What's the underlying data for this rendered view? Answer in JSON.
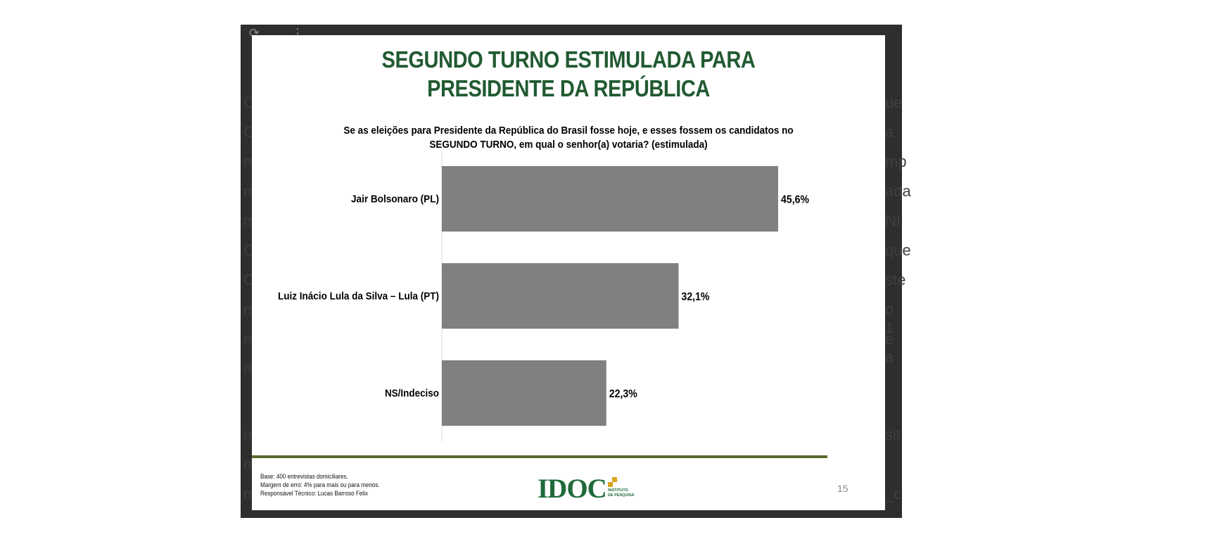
{
  "viewer": {
    "background_letters": [
      "C",
      "C",
      "m",
      "m",
      "m",
      "C",
      "C",
      "m",
      "m",
      "m",
      "m",
      "m",
      "m"
    ],
    "background_right": [
      "ue",
      "a",
      "mp",
      "ada",
      "NI",
      "que",
      "ste",
      "o 1",
      "e a",
      "sit",
      "_c"
    ]
  },
  "slide": {
    "title_lines": [
      "SEGUNDO TURNO ESTIMULADA PARA",
      "PRESIDENTE DA REPÚBLICA"
    ],
    "question_lines": [
      "Se as eleições para Presidente da República do Brasil fosse hoje, e esses fossem os candidatos no",
      "SEGUNDO TURNO, em qual o senhor(a) votaria? (estimulada)"
    ],
    "footer_notes": [
      "Base: 400 entrevistas domiciliares.",
      "Margem de erro: 4% para mais ou para menos.",
      "Responsável Técnico: Lucas Barroso Felix"
    ],
    "logo": {
      "name": "IDOC",
      "subtitle_lines": [
        "INSTITUTO",
        "DE PESQUISA"
      ],
      "accent_color": "#d8a31a"
    },
    "page_number": "15"
  },
  "chart_data": {
    "type": "bar",
    "orientation": "horizontal",
    "categories": [
      "Jair Bolsonaro (PL)",
      "Luiz Inácio Lula da Silva – Lula (PT)",
      "NS/Indeciso"
    ],
    "values": [
      45.6,
      32.1,
      22.3
    ],
    "value_labels": [
      "45,6%",
      "32,1%",
      "22,3%"
    ],
    "xlim": [
      0,
      50
    ],
    "bar_color": "#808080",
    "title": "SEGUNDO TURNO ESTIMULADA PARA PRESIDENTE DA REPÚBLICA",
    "xlabel": "",
    "ylabel": "",
    "grid": false,
    "legend": "none"
  }
}
